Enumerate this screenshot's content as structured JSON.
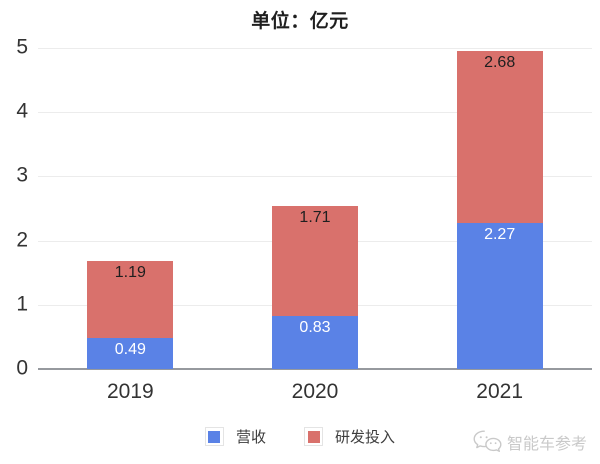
{
  "chart_data": {
    "type": "bar",
    "stacked": true,
    "title": "单位：亿元",
    "categories": [
      "2019",
      "2020",
      "2021"
    ],
    "series": [
      {
        "name": "营收",
        "color": "#5A82E6",
        "label_color": "#ffffff",
        "values": [
          0.49,
          0.83,
          2.27
        ]
      },
      {
        "name": "研发投入",
        "color": "#D9716C",
        "label_color": "#1f1f1f",
        "values": [
          1.19,
          1.71,
          2.68
        ]
      }
    ],
    "stack_totals": [
      1.68,
      2.54,
      4.95
    ],
    "ylim": [
      0,
      5
    ],
    "y_ticks": [
      0,
      1,
      2,
      3,
      4,
      5
    ],
    "grid": true,
    "legend_position": "bottom"
  },
  "watermark": {
    "icon": "wechat-icon",
    "text": "智能车参考"
  },
  "colors": {
    "background": "#ffffff",
    "grid": "#ececec",
    "axis": "#96999e",
    "tick_text": "#333333",
    "title_text": "#1f1f1f",
    "legend_text": "#3d3d3d",
    "watermark": "#c9c9c9",
    "bar_blue": "#5A82E6",
    "bar_red": "#D9716C"
  }
}
